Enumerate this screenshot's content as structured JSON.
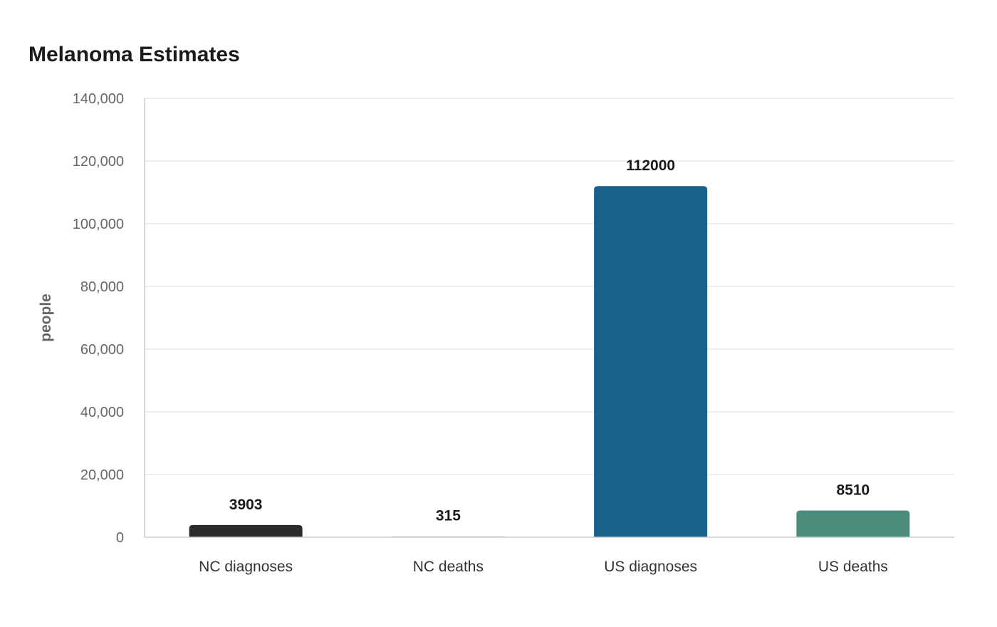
{
  "chart_data": {
    "type": "bar",
    "title": "Melanoma Estimates",
    "xlabel": "",
    "ylabel": "people",
    "categories": [
      "NC diagnoses",
      "NC deaths",
      "US diagnoses",
      "US deaths"
    ],
    "values": [
      3903,
      315,
      112000,
      8510
    ],
    "data_labels": [
      "3903",
      "315",
      "112000",
      "8510"
    ],
    "colors": [
      "#2b2b2b",
      "#d4d4d4",
      "#186188",
      "#4d8c7c"
    ],
    "ylim": [
      0,
      140000
    ],
    "yticks": [
      0,
      20000,
      40000,
      60000,
      80000,
      100000,
      120000,
      140000
    ],
    "ytick_labels": [
      "0",
      "20,000",
      "40,000",
      "60,000",
      "80,000",
      "100,000",
      "120,000",
      "140,000"
    ],
    "grid": true,
    "legend": "none"
  }
}
